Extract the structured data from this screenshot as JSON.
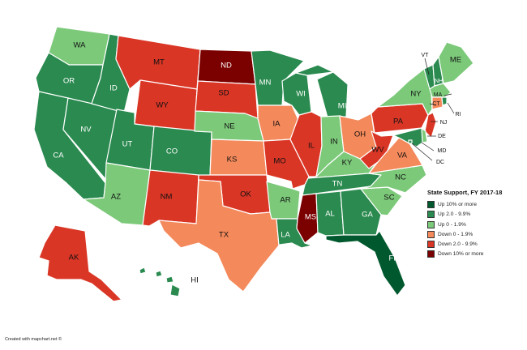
{
  "legend": {
    "title": "State Support, FY 2017-18",
    "items": [
      {
        "label": "Up 10% or more",
        "color": "#00592e"
      },
      {
        "label": "Up 2.0 - 9.9%",
        "color": "#2a8a4f"
      },
      {
        "label": "Up 0 - 1.9%",
        "color": "#7cc97a"
      },
      {
        "label": "Down 0 - 1.9%",
        "color": "#f4895b"
      },
      {
        "label": "Down 2.0 - 9.9%",
        "color": "#da3626"
      },
      {
        "label": "Down 10% or more",
        "color": "#7b0000"
      }
    ]
  },
  "categories": {
    "up10": "#00592e",
    "up2": "#2a8a4f",
    "up0": "#7cc97a",
    "down0": "#f4895b",
    "down2": "#da3626",
    "down10": "#7b0000"
  },
  "states": {
    "WA": "up0",
    "OR": "up2",
    "CA": "up2",
    "ID": "up2",
    "NV": "up2",
    "MT": "down2",
    "WY": "down2",
    "UT": "up2",
    "AZ": "up0",
    "CO": "up2",
    "NM": "down2",
    "ND": "down10",
    "SD": "down2",
    "NE": "up0",
    "KS": "down0",
    "OK": "down2",
    "TX": "down0",
    "MN": "up2",
    "IA": "down0",
    "MO": "down2",
    "AR": "up0",
    "LA": "up2",
    "WI": "up2",
    "IL": "down2",
    "MI": "up2",
    "IN": "up0",
    "OH": "down0",
    "KY": "up0",
    "TN": "up2",
    "MS": "down10",
    "AL": "up2",
    "GA": "up2",
    "FL": "up10",
    "SC": "up0",
    "NC": "up0",
    "VA": "down0",
    "WV": "down2",
    "PA": "down2",
    "NY": "up0",
    "VT": "up2",
    "NH": "up2",
    "ME": "up0",
    "MA": "up0",
    "RI": "up2",
    "CT": "down0",
    "NJ": "down2",
    "DE": "up0",
    "MD": "up2",
    "DC": "up2",
    "AK": "down2",
    "HI": "up2"
  },
  "labels": {
    "WA": "WA",
    "OR": "OR",
    "CA": "CA",
    "ID": "ID",
    "NV": "NV",
    "MT": "MT",
    "WY": "WY",
    "UT": "UT",
    "AZ": "AZ",
    "CO": "CO",
    "NM": "NM",
    "ND": "ND",
    "SD": "SD",
    "NE": "NE",
    "KS": "KS",
    "OK": "OK",
    "TX": "TX",
    "MN": "MN",
    "IA": "IA",
    "MO": "MO",
    "AR": "AR",
    "LA": "LA",
    "WI": "WI",
    "IL": "IL",
    "MI": "MI",
    "IN": "IN",
    "OH": "OH",
    "KY": "KY",
    "TN": "TN",
    "MS": "MS",
    "AL": "AL",
    "GA": "GA",
    "FL": "FL",
    "SC": "SC",
    "NC": "NC",
    "VA": "VA",
    "WV": "WV",
    "PA": "PA",
    "NY": "NY",
    "VT": "VT",
    "NH": "NH",
    "ME": "ME",
    "MA": "MA",
    "RI": "RI",
    "CT": "CT",
    "NJ": "NJ",
    "DE": "DE",
    "MD": "MD",
    "DC": "DC",
    "AK": "AK",
    "HI": "HI"
  },
  "credit": "Created with mapchart.net ©"
}
